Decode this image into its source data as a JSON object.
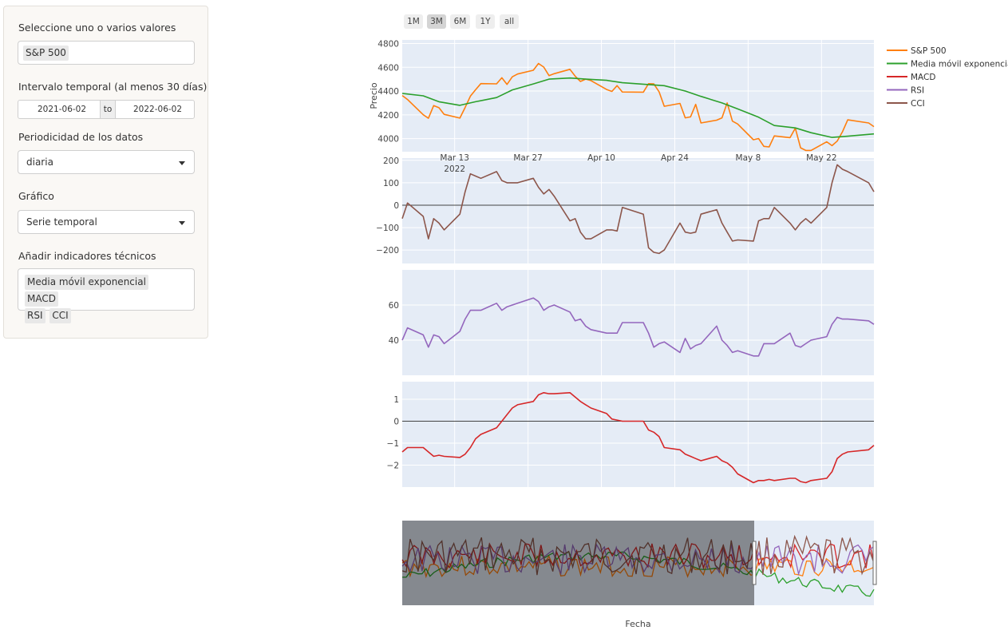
{
  "sidebar": {
    "select_label": "Seleccione uno o varios valores",
    "selected_values": [
      "S&P 500"
    ],
    "interval_label": "Intervalo temporal (al menos 30 días)",
    "date_start": "2021-06-02",
    "date_to": "to",
    "date_end": "2022-06-02",
    "periodicity_label": "Periodicidad de los datos",
    "periodicity_value": "diaria",
    "chart_label": "Gráfico",
    "chart_value": "Serie temporal",
    "indicators_label": "Añadir indicadores técnicos",
    "indicators": [
      "Media móvil exponencial",
      "MACD",
      "RSI",
      "CCI"
    ]
  },
  "range_buttons": [
    {
      "label": "1M",
      "active": false
    },
    {
      "label": "3M",
      "active": true
    },
    {
      "label": "6M",
      "active": false
    },
    {
      "label": "1Y",
      "active": false
    },
    {
      "label": "all",
      "active": false
    }
  ],
  "colors": {
    "sp500": "#ff7f0e",
    "ema": "#2ca02c",
    "macd": "#d62728",
    "rsi": "#9467bd",
    "cci": "#8c564b",
    "plot_bg": "#e5ecf6"
  },
  "chart_data": {
    "type": "line",
    "xlabel": "Fecha",
    "x_ticks": [
      "Mar 13",
      "Mar 27",
      "Apr 10",
      "Apr 24",
      "May 8",
      "May 22"
    ],
    "x_year_label": "2022",
    "x_range": [
      "2022-03-03",
      "2022-06-01"
    ],
    "legend": [
      "S&P 500",
      "Media móvil exponencial",
      "MACD",
      "RSI",
      "CCI"
    ],
    "legend_position": "top-right",
    "panels": [
      {
        "name": "price",
        "ylabel": "Precio",
        "yticks": [
          4000,
          4200,
          4400,
          4600,
          4800
        ],
        "ylim": [
          3890,
          4830
        ],
        "series": [
          {
            "name": "S&P 500",
            "color": "#ff7f0e",
            "x": [
              "2022-03-03",
              "2022-03-04",
              "2022-03-07",
              "2022-03-08",
              "2022-03-09",
              "2022-03-10",
              "2022-03-11",
              "2022-03-14",
              "2022-03-15",
              "2022-03-16",
              "2022-03-17",
              "2022-03-18",
              "2022-03-21",
              "2022-03-22",
              "2022-03-23",
              "2022-03-24",
              "2022-03-25",
              "2022-03-28",
              "2022-03-29",
              "2022-03-30",
              "2022-03-31",
              "2022-04-01",
              "2022-04-04",
              "2022-04-05",
              "2022-04-06",
              "2022-04-07",
              "2022-04-08",
              "2022-04-11",
              "2022-04-12",
              "2022-04-13",
              "2022-04-14",
              "2022-04-18",
              "2022-04-19",
              "2022-04-20",
              "2022-04-21",
              "2022-04-22",
              "2022-04-25",
              "2022-04-26",
              "2022-04-27",
              "2022-04-28",
              "2022-04-29",
              "2022-05-02",
              "2022-05-03",
              "2022-05-04",
              "2022-05-05",
              "2022-05-06",
              "2022-05-09",
              "2022-05-10",
              "2022-05-11",
              "2022-05-12",
              "2022-05-13",
              "2022-05-16",
              "2022-05-17",
              "2022-05-18",
              "2022-05-19",
              "2022-05-20",
              "2022-05-23",
              "2022-05-24",
              "2022-05-25",
              "2022-05-26",
              "2022-05-27",
              "2022-05-31",
              "2022-06-01"
            ],
            "y": [
              4363,
              4329,
              4201,
              4171,
              4278,
              4260,
              4204,
              4173,
              4262,
              4357,
              4411,
              4463,
              4461,
              4512,
              4456,
              4520,
              4543,
              4575,
              4632,
              4602,
              4530,
              4546,
              4583,
              4525,
              4481,
              4500,
              4488,
              4413,
              4397,
              4446,
              4392,
              4391,
              4462,
              4460,
              4394,
              4272,
              4296,
              4175,
              4183,
              4288,
              4132,
              4155,
              4175,
              4300,
              4147,
              4123,
              3991,
              4001,
              3935,
              3930,
              4023,
              4008,
              4088,
              3923,
              3901,
              3901,
              3973,
              3941,
              3979,
              4058,
              4158,
              4132,
              4101
            ]
          },
          {
            "name": "Media móvil exponencial",
            "color": "#2ca02c",
            "x": [
              "2022-03-03",
              "2022-03-07",
              "2022-03-10",
              "2022-03-14",
              "2022-03-17",
              "2022-03-21",
              "2022-03-24",
              "2022-03-28",
              "2022-03-31",
              "2022-04-04",
              "2022-04-07",
              "2022-04-11",
              "2022-04-14",
              "2022-04-19",
              "2022-04-22",
              "2022-04-26",
              "2022-04-29",
              "2022-05-03",
              "2022-05-06",
              "2022-05-10",
              "2022-05-13",
              "2022-05-17",
              "2022-05-20",
              "2022-05-24",
              "2022-05-27",
              "2022-06-01"
            ],
            "y": [
              4380,
              4360,
              4310,
              4280,
              4310,
              4345,
              4410,
              4460,
              4500,
              4510,
              4500,
              4490,
              4470,
              4455,
              4445,
              4400,
              4355,
              4300,
              4250,
              4180,
              4110,
              4090,
              4050,
              4010,
              4020,
              4040
            ]
          }
        ]
      },
      {
        "name": "CCI",
        "yticks": [
          -200,
          -100,
          0,
          100,
          200
        ],
        "ylim": [
          -260,
          210
        ],
        "zero_line": true,
        "series": [
          {
            "name": "CCI",
            "color": "#8c564b",
            "x": [
              "2022-03-03",
              "2022-03-04",
              "2022-03-07",
              "2022-03-08",
              "2022-03-09",
              "2022-03-10",
              "2022-03-11",
              "2022-03-14",
              "2022-03-15",
              "2022-03-16",
              "2022-03-17",
              "2022-03-18",
              "2022-03-21",
              "2022-03-22",
              "2022-03-23",
              "2022-03-24",
              "2022-03-25",
              "2022-03-28",
              "2022-03-29",
              "2022-03-30",
              "2022-03-31",
              "2022-04-01",
              "2022-04-04",
              "2022-04-05",
              "2022-04-06",
              "2022-04-07",
              "2022-04-08",
              "2022-04-11",
              "2022-04-12",
              "2022-04-13",
              "2022-04-14",
              "2022-04-18",
              "2022-04-19",
              "2022-04-20",
              "2022-04-21",
              "2022-04-22",
              "2022-04-25",
              "2022-04-26",
              "2022-04-27",
              "2022-04-28",
              "2022-04-29",
              "2022-05-02",
              "2022-05-03",
              "2022-05-04",
              "2022-05-05",
              "2022-05-06",
              "2022-05-09",
              "2022-05-10",
              "2022-05-11",
              "2022-05-12",
              "2022-05-13",
              "2022-05-16",
              "2022-05-17",
              "2022-05-18",
              "2022-05-19",
              "2022-05-20",
              "2022-05-23",
              "2022-05-24",
              "2022-05-25",
              "2022-05-26",
              "2022-05-27",
              "2022-05-31",
              "2022-06-01"
            ],
            "y": [
              -60,
              10,
              -50,
              -150,
              -60,
              -80,
              -110,
              -40,
              60,
              140,
              130,
              120,
              150,
              110,
              100,
              100,
              100,
              120,
              80,
              50,
              70,
              40,
              -70,
              -60,
              -120,
              -150,
              -150,
              -110,
              -110,
              -115,
              -10,
              -40,
              -190,
              -210,
              -215,
              -200,
              -80,
              -120,
              -125,
              -120,
              -40,
              -20,
              -80,
              -120,
              -160,
              -155,
              -160,
              -70,
              -60,
              -60,
              -10,
              -80,
              -110,
              -80,
              -60,
              -80,
              -10,
              100,
              180,
              160,
              150,
              100,
              60
            ]
          }
        ]
      },
      {
        "name": "RSI",
        "yticks": [
          40,
          60
        ],
        "ylim": [
          20,
          80
        ],
        "series": [
          {
            "name": "RSI",
            "color": "#9467bd",
            "x": [
              "2022-03-03",
              "2022-03-04",
              "2022-03-07",
              "2022-03-08",
              "2022-03-09",
              "2022-03-10",
              "2022-03-11",
              "2022-03-14",
              "2022-03-15",
              "2022-03-16",
              "2022-03-17",
              "2022-03-18",
              "2022-03-21",
              "2022-03-22",
              "2022-03-23",
              "2022-03-24",
              "2022-03-25",
              "2022-03-28",
              "2022-03-29",
              "2022-03-30",
              "2022-03-31",
              "2022-04-01",
              "2022-04-04",
              "2022-04-05",
              "2022-04-06",
              "2022-04-07",
              "2022-04-08",
              "2022-04-11",
              "2022-04-12",
              "2022-04-13",
              "2022-04-14",
              "2022-04-18",
              "2022-04-19",
              "2022-04-20",
              "2022-04-21",
              "2022-04-22",
              "2022-04-25",
              "2022-04-26",
              "2022-04-27",
              "2022-04-28",
              "2022-04-29",
              "2022-05-02",
              "2022-05-03",
              "2022-05-04",
              "2022-05-05",
              "2022-05-06",
              "2022-05-09",
              "2022-05-10",
              "2022-05-11",
              "2022-05-12",
              "2022-05-13",
              "2022-05-16",
              "2022-05-17",
              "2022-05-18",
              "2022-05-19",
              "2022-05-20",
              "2022-05-23",
              "2022-05-24",
              "2022-05-25",
              "2022-05-26",
              "2022-05-27",
              "2022-05-31",
              "2022-06-01"
            ],
            "y": [
              40,
              47,
              43,
              36,
              43,
              42,
              38,
              45,
              52,
              57,
              57,
              57,
              61,
              57,
              59,
              60,
              61,
              64,
              62,
              57,
              59,
              60,
              56,
              51,
              52,
              48,
              46,
              44,
              44,
              44,
              50,
              50,
              44,
              36,
              38,
              39,
              33,
              41,
              35,
              37,
              38,
              48,
              40,
              37,
              33,
              34,
              31,
              31,
              38,
              38,
              38,
              44,
              37,
              36,
              38,
              40,
              42,
              49,
              53,
              52,
              52,
              51,
              49
            ]
          }
        ]
      },
      {
        "name": "MACD",
        "yticks": [
          -2,
          -1,
          0,
          1
        ],
        "ylim": [
          -3,
          1.8
        ],
        "zero_line": true,
        "series": [
          {
            "name": "MACD",
            "color": "#d62728",
            "x": [
              "2022-03-03",
              "2022-03-04",
              "2022-03-07",
              "2022-03-08",
              "2022-03-09",
              "2022-03-10",
              "2022-03-11",
              "2022-03-14",
              "2022-03-15",
              "2022-03-16",
              "2022-03-17",
              "2022-03-18",
              "2022-03-21",
              "2022-03-22",
              "2022-03-23",
              "2022-03-24",
              "2022-03-25",
              "2022-03-28",
              "2022-03-29",
              "2022-03-30",
              "2022-03-31",
              "2022-04-01",
              "2022-04-04",
              "2022-04-05",
              "2022-04-06",
              "2022-04-07",
              "2022-04-08",
              "2022-04-11",
              "2022-04-12",
              "2022-04-13",
              "2022-04-14",
              "2022-04-18",
              "2022-04-19",
              "2022-04-20",
              "2022-04-21",
              "2022-04-22",
              "2022-04-25",
              "2022-04-26",
              "2022-04-27",
              "2022-04-28",
              "2022-04-29",
              "2022-05-02",
              "2022-05-03",
              "2022-05-04",
              "2022-05-05",
              "2022-05-06",
              "2022-05-09",
              "2022-05-10",
              "2022-05-11",
              "2022-05-12",
              "2022-05-13",
              "2022-05-16",
              "2022-05-17",
              "2022-05-18",
              "2022-05-19",
              "2022-05-20",
              "2022-05-23",
              "2022-05-24",
              "2022-05-25",
              "2022-05-26",
              "2022-05-27",
              "2022-05-31",
              "2022-06-01"
            ],
            "y": [
              -1.4,
              -1.2,
              -1.2,
              -1.4,
              -1.6,
              -1.55,
              -1.6,
              -1.65,
              -1.5,
              -1.2,
              -0.8,
              -0.6,
              -0.3,
              0.0,
              0.3,
              0.6,
              0.75,
              0.9,
              1.2,
              1.3,
              1.25,
              1.25,
              1.3,
              1.1,
              0.9,
              0.75,
              0.6,
              0.35,
              0.1,
              0.05,
              0.0,
              0.0,
              -0.4,
              -0.5,
              -0.7,
              -1.2,
              -1.3,
              -1.5,
              -1.6,
              -1.7,
              -1.8,
              -1.6,
              -1.8,
              -1.9,
              -2.1,
              -2.4,
              -2.8,
              -2.7,
              -2.7,
              -2.65,
              -2.7,
              -2.6,
              -2.6,
              -2.75,
              -2.8,
              -2.7,
              -2.6,
              -2.3,
              -1.7,
              -1.5,
              -1.4,
              -1.3,
              -1.1
            ]
          }
        ]
      }
    ]
  }
}
